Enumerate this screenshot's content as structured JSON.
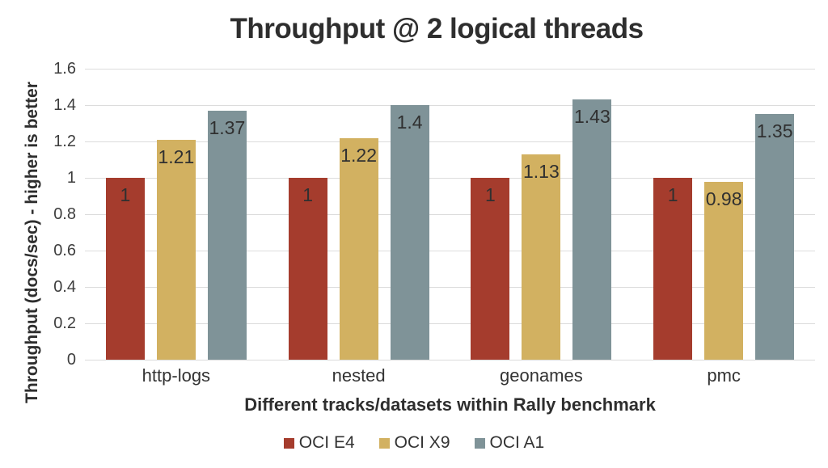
{
  "chart_data": {
    "type": "bar",
    "title": "Throughput @ 2 logical threads",
    "xlabel": "Different tracks/datasets within Rally benchmark",
    "ylabel": "Throughput (docs/sec) - higher is better",
    "categories": [
      "http-logs",
      "nested",
      "geonames",
      "pmc"
    ],
    "series": [
      {
        "name": "OCI E4",
        "color": "#a53c2d",
        "values": [
          1,
          1,
          1,
          1
        ]
      },
      {
        "name": "OCI X9",
        "color": "#d2b161",
        "values": [
          1.21,
          1.22,
          1.13,
          0.98
        ]
      },
      {
        "name": "OCI A1",
        "color": "#7f9398",
        "values": [
          1.37,
          1.4,
          1.43,
          1.35
        ]
      }
    ],
    "ylim": [
      0,
      1.6
    ],
    "ytick_step": 0.2,
    "yticks": [
      "1.6",
      "1.4",
      "1.2",
      "1",
      "0.8",
      "0.6",
      "0.4",
      "0.2",
      "0"
    ],
    "grid": true,
    "gridline_color": "#dcdcdc",
    "legend_position": "bottom",
    "value_labels_shown": true
  }
}
